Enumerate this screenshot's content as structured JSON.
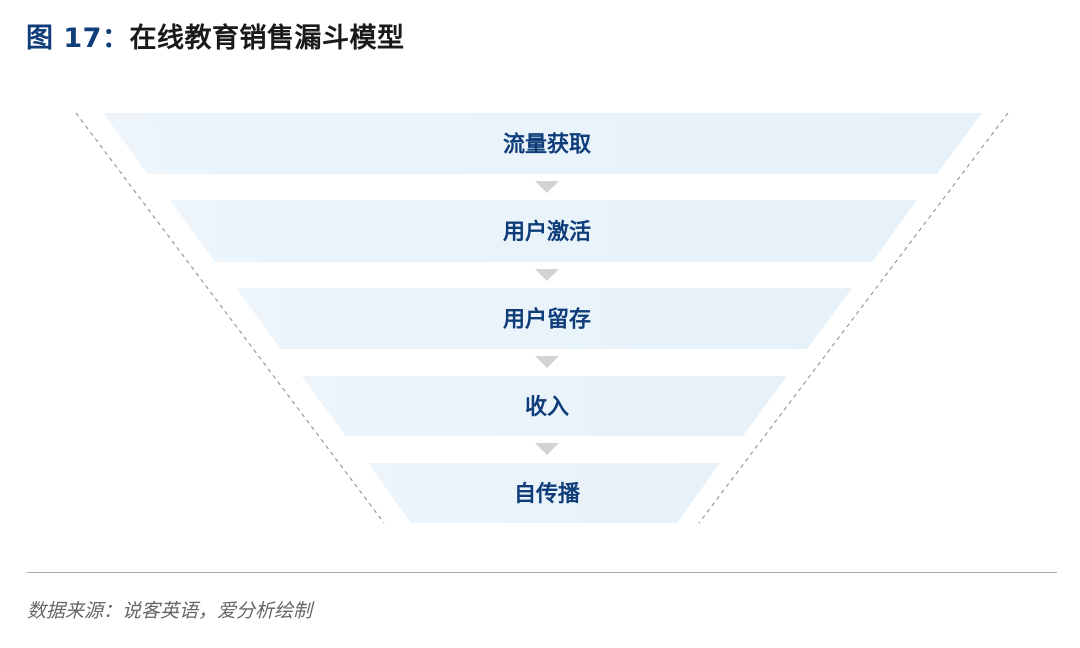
{
  "title": {
    "figure": "图 17：",
    "text": "在线教育销售漏斗模型"
  },
  "funnel": {
    "stages": [
      {
        "label": "流量获取"
      },
      {
        "label": "用户激活"
      },
      {
        "label": "用户留存"
      },
      {
        "label": "收入"
      },
      {
        "label": "自传播"
      }
    ],
    "colors": {
      "fill": "#eaf4fb",
      "text": "#0f3d7a",
      "arrow": "#d3d3d3",
      "dashed": "#999999"
    }
  },
  "source": "数据来源：说客英语，爱分析绘制"
}
